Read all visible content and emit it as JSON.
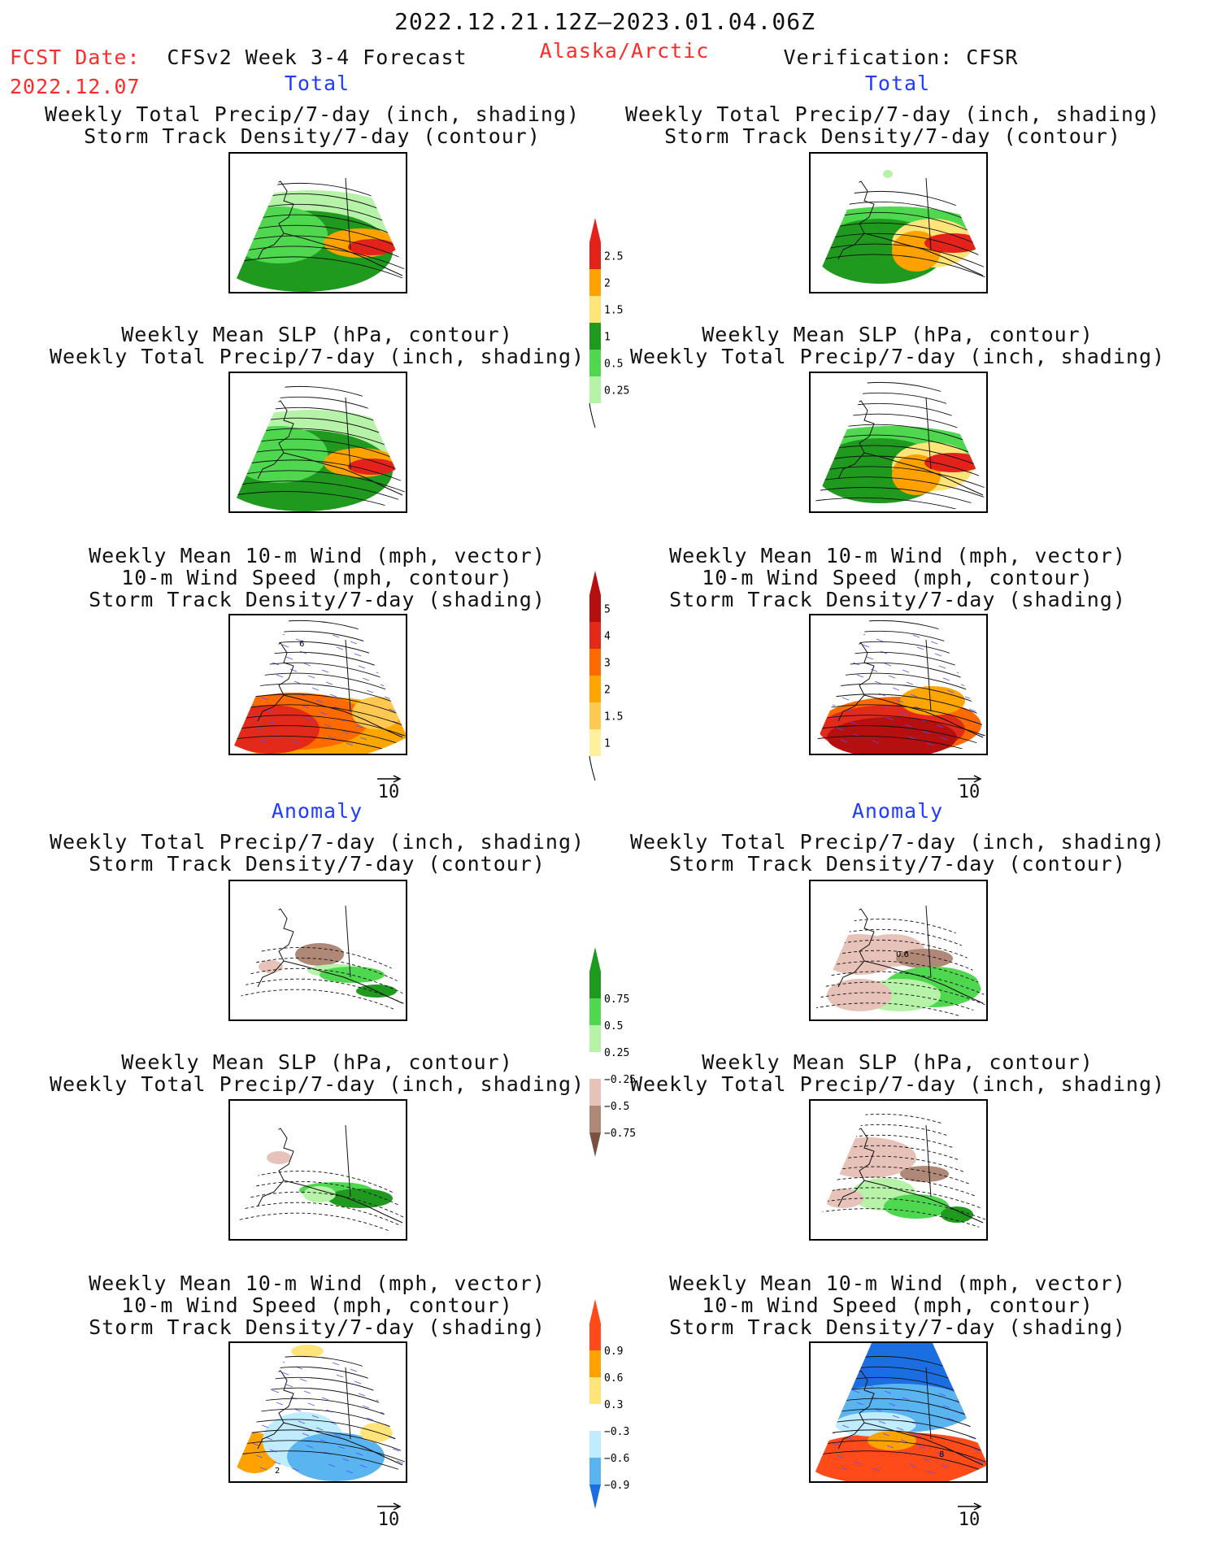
{
  "header": {
    "date_range": "2022.12.21.12Z–2023.01.04.06Z",
    "fcst_label": "FCST Date:",
    "fcst_date": "2022.12.07",
    "model": "CFSv2 Week 3-4 Forecast",
    "region": "Alaska/Arctic",
    "verification": "Verification: CFSR"
  },
  "sections": {
    "total": "Total",
    "anomaly": "Anomaly"
  },
  "titles": {
    "precip_storm": [
      "Weekly Total Precip/7-day (inch, shading)",
      "Storm Track Density/7-day (contour)"
    ],
    "slp_precip": [
      "Weekly Mean SLP (hPa, contour)",
      "Weekly Total Precip/7-day (inch, shading)"
    ],
    "wind_storm": [
      "Weekly Mean 10-m Wind (mph, vector)",
      "10-m Wind Speed (mph, contour)",
      "Storm Track Density/7-day (shading)"
    ]
  },
  "vector_ref": "10",
  "contour_labels": {
    "wind_total_left": "6",
    "precip_anom_right": "0.6",
    "wind_anom_right": "8",
    "wind_anom_left": "2"
  },
  "colorbars": {
    "precip_total": {
      "labels": [
        "2.5",
        "2",
        "1.5",
        "1",
        "0.5",
        "0.25"
      ],
      "colors": [
        "#e3231b",
        "#ffa200",
        "#ffe47a",
        "#1f9a1f",
        "#4fd84f",
        "#b6f2a8"
      ]
    },
    "storm_total": {
      "labels": [
        "5",
        "4",
        "3",
        "2",
        "1.5",
        "1"
      ],
      "colors": [
        "#b50f0f",
        "#e32a1a",
        "#ff6a00",
        "#ffa500",
        "#ffc850",
        "#fff0a0"
      ]
    },
    "precip_anom": {
      "labels": [
        "0.75",
        "0.5",
        "0.25",
        "−0.25",
        "−0.5",
        "−0.75"
      ],
      "colors": [
        "#1f9a1f",
        "#4fd84f",
        "#b6f2a8",
        "#ffffff",
        "#e6c2b8",
        "#b08878",
        "#7a5040"
      ]
    },
    "storm_anom": {
      "labels": [
        "0.9",
        "0.6",
        "0.3",
        "−0.3",
        "−0.6",
        "−0.9"
      ],
      "colors": [
        "#ff4a1a",
        "#ffa200",
        "#ffe47a",
        "#ffffff",
        "#c0ecff",
        "#5ab4f0",
        "#1a6ee0"
      ]
    }
  }
}
